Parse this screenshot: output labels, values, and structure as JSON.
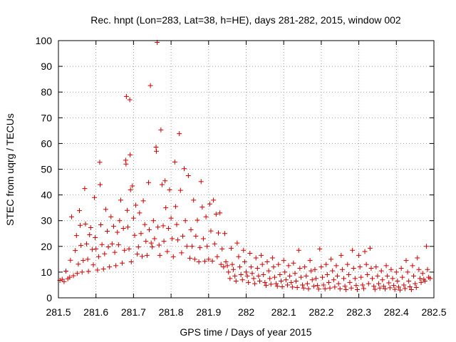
{
  "colors": {
    "points": "#cc0000",
    "frame": "#000000",
    "grid": "#a0a0a0"
  },
  "chart_data": {
    "type": "scatter",
    "title": "Rec. hnpt (Lon=283, Lat=38, h=HE), days 281-282, 2015, window 002",
    "xlabel": "GPS time / Days of year 2015",
    "ylabel": "STEC from uqrg / TECUs",
    "xlim": [
      281.5,
      282.5
    ],
    "ylim": [
      0,
      100
    ],
    "xticks": [
      281.5,
      281.6,
      281.7,
      281.8,
      281.9,
      282,
      282.1,
      282.2,
      282.3,
      282.4,
      282.5
    ],
    "xtick_labels": [
      "281.5",
      "281.6",
      "281.7",
      "281.8",
      "281.9",
      "282",
      "282.1",
      "282.2",
      "282.3",
      "282.4",
      "282.5"
    ],
    "yticks": [
      0,
      10,
      20,
      30,
      40,
      50,
      60,
      70,
      80,
      90,
      100
    ],
    "ytick_labels": [
      "0",
      "10",
      "20",
      "30",
      "40",
      "50",
      "60",
      "70",
      "80",
      "90",
      "100"
    ],
    "grid": true,
    "marker": "+",
    "points": [
      [
        281.504,
        6.8
      ],
      [
        281.51,
        7.2
      ],
      [
        281.515,
        6.3
      ],
      [
        281.52,
        10.4
      ],
      [
        281.525,
        7.4
      ],
      [
        281.53,
        8.0
      ],
      [
        281.532,
        14.6
      ],
      [
        281.535,
        31.5
      ],
      [
        281.54,
        8.6
      ],
      [
        281.545,
        18.4
      ],
      [
        281.548,
        24.2
      ],
      [
        281.55,
        9.5
      ],
      [
        281.553,
        13.1
      ],
      [
        281.556,
        33.9
      ],
      [
        281.558,
        28.2
      ],
      [
        281.56,
        20.4
      ],
      [
        281.563,
        10.0
      ],
      [
        281.566,
        14.5
      ],
      [
        281.57,
        42.5
      ],
      [
        281.572,
        28.7
      ],
      [
        281.575,
        21.0
      ],
      [
        281.578,
        15.0
      ],
      [
        281.58,
        10.3
      ],
      [
        281.583,
        24.5
      ],
      [
        281.586,
        27.3
      ],
      [
        281.59,
        18.8
      ],
      [
        281.593,
        12.8
      ],
      [
        281.596,
        39.0
      ],
      [
        281.598,
        23.4
      ],
      [
        281.6,
        19.0
      ],
      [
        281.604,
        10.8
      ],
      [
        281.607,
        16.0
      ],
      [
        281.61,
        52.7
      ],
      [
        281.611,
        44.0
      ],
      [
        281.613,
        28.4
      ],
      [
        281.616,
        20.7
      ],
      [
        281.62,
        11.2
      ],
      [
        281.623,
        17.1
      ],
      [
        281.626,
        34.4
      ],
      [
        281.63,
        25.9
      ],
      [
        281.633,
        19.8
      ],
      [
        281.636,
        12.0
      ],
      [
        281.64,
        31.5
      ],
      [
        281.643,
        21.0
      ],
      [
        281.647,
        27.8
      ],
      [
        281.65,
        17.7
      ],
      [
        281.653,
        12.5
      ],
      [
        281.657,
        25.5
      ],
      [
        281.66,
        20.6
      ],
      [
        281.663,
        30.0
      ],
      [
        281.666,
        38.0
      ],
      [
        281.67,
        13.5
      ],
      [
        281.673,
        27.0
      ],
      [
        281.676,
        18.5
      ],
      [
        281.679,
        53.5
      ],
      [
        281.68,
        52.0
      ],
      [
        281.681,
        78.3
      ],
      [
        281.683,
        34.0
      ],
      [
        281.685,
        27.5
      ],
      [
        281.688,
        19.0
      ],
      [
        281.69,
        77.0
      ],
      [
        281.691,
        55.6
      ],
      [
        281.692,
        42.0
      ],
      [
        281.694,
        14.0
      ],
      [
        281.697,
        43.5
      ],
      [
        281.7,
        31.0
      ],
      [
        281.703,
        24.3
      ],
      [
        281.706,
        36.0
      ],
      [
        281.71,
        17.0
      ],
      [
        281.713,
        19.8
      ],
      [
        281.716,
        33.0
      ],
      [
        281.72,
        25.0
      ],
      [
        281.723,
        16.1
      ],
      [
        281.726,
        37.7
      ],
      [
        281.73,
        28.5
      ],
      [
        281.733,
        22.0
      ],
      [
        281.736,
        16.5
      ],
      [
        281.74,
        44.8
      ],
      [
        281.742,
        26.5
      ],
      [
        281.745,
        82.5
      ],
      [
        281.747,
        21.3
      ],
      [
        281.75,
        19.8
      ],
      [
        281.753,
        30.0
      ],
      [
        281.756,
        23.0
      ],
      [
        281.76,
        58.6
      ],
      [
        281.761,
        57.0
      ],
      [
        281.763,
        99.3
      ],
      [
        281.765,
        27.5
      ],
      [
        281.768,
        20.5
      ],
      [
        281.77,
        16.5
      ],
      [
        281.773,
        65.3
      ],
      [
        281.776,
        44.0
      ],
      [
        281.779,
        28.0
      ],
      [
        281.781,
        22.0
      ],
      [
        281.784,
        45.5
      ],
      [
        281.786,
        35.0
      ],
      [
        281.79,
        18.0
      ],
      [
        281.793,
        27.0
      ],
      [
        281.796,
        42.0
      ],
      [
        281.8,
        31.0
      ],
      [
        281.803,
        23.0
      ],
      [
        281.806,
        16.0
      ],
      [
        281.81,
        52.8
      ],
      [
        281.812,
        35.5
      ],
      [
        281.815,
        28.5
      ],
      [
        281.818,
        22.5
      ],
      [
        281.822,
        63.8
      ],
      [
        281.825,
        41.8
      ],
      [
        281.828,
        17.5
      ],
      [
        281.831,
        24.0
      ],
      [
        281.835,
        50.2
      ],
      [
        281.838,
        30.0
      ],
      [
        281.842,
        20.0
      ],
      [
        281.846,
        47.5
      ],
      [
        281.85,
        15.4
      ],
      [
        281.853,
        26.5
      ],
      [
        281.856,
        20.0
      ],
      [
        281.86,
        38.0
      ],
      [
        281.863,
        15.0
      ],
      [
        281.866,
        24.0
      ],
      [
        281.87,
        30.2
      ],
      [
        281.874,
        14.0
      ],
      [
        281.877,
        19.5
      ],
      [
        281.88,
        45.2
      ],
      [
        281.883,
        35.3
      ],
      [
        281.886,
        23.0
      ],
      [
        281.89,
        14.2
      ],
      [
        281.893,
        31.5
      ],
      [
        281.896,
        20.0
      ],
      [
        281.9,
        15.0
      ],
      [
        281.903,
        36.5
      ],
      [
        281.906,
        26.0
      ],
      [
        281.91,
        14.3
      ],
      [
        281.913,
        38.0
      ],
      [
        281.916,
        21.0
      ],
      [
        281.92,
        32.5
      ],
      [
        281.923,
        16.0
      ],
      [
        281.926,
        25.2
      ],
      [
        281.93,
        33.0
      ],
      [
        281.933,
        13.0
      ],
      [
        281.936,
        19.0
      ],
      [
        281.94,
        12.0
      ],
      [
        281.943,
        25.0
      ],
      [
        281.946,
        14.0
      ],
      [
        281.95,
        12.5
      ],
      [
        281.953,
        10.0
      ],
      [
        281.957,
        7.5
      ],
      [
        281.96,
        19.3
      ],
      [
        281.963,
        13.0
      ],
      [
        281.966,
        11.0
      ],
      [
        281.97,
        8.5
      ],
      [
        281.973,
        6.5
      ],
      [
        281.976,
        21.3
      ],
      [
        281.98,
        16.0
      ],
      [
        281.983,
        12.0
      ],
      [
        281.986,
        9.0
      ],
      [
        281.99,
        7.0
      ],
      [
        281.993,
        18.5
      ],
      [
        281.996,
        14.0
      ],
      [
        282.0,
        10.0
      ],
      [
        282.003,
        8.5
      ],
      [
        282.006,
        6.0
      ],
      [
        282.01,
        17.3
      ],
      [
        282.013,
        12.0
      ],
      [
        282.016,
        9.5
      ],
      [
        282.02,
        7.5
      ],
      [
        282.023,
        5.5
      ],
      [
        282.026,
        15.5
      ],
      [
        282.03,
        11.5
      ],
      [
        282.033,
        8.5
      ],
      [
        282.036,
        6.5
      ],
      [
        282.04,
        16.5
      ],
      [
        282.043,
        13.0
      ],
      [
        282.046,
        9.0
      ],
      [
        282.05,
        6.0
      ],
      [
        282.053,
        4.8
      ],
      [
        282.056,
        14.0
      ],
      [
        282.06,
        10.5
      ],
      [
        282.063,
        7.5
      ],
      [
        282.066,
        5.3
      ],
      [
        282.07,
        15.5
      ],
      [
        282.073,
        12.0
      ],
      [
        282.076,
        8.0
      ],
      [
        282.08,
        5.5
      ],
      [
        282.083,
        4.5
      ],
      [
        282.086,
        13.0
      ],
      [
        282.09,
        9.0
      ],
      [
        282.093,
        6.5
      ],
      [
        282.096,
        4.3
      ],
      [
        282.1,
        14.5
      ],
      [
        282.103,
        10.0
      ],
      [
        282.106,
        7.0
      ],
      [
        282.11,
        5.0
      ],
      [
        282.113,
        12.5
      ],
      [
        282.116,
        8.5
      ],
      [
        282.12,
        6.0
      ],
      [
        282.123,
        4.2
      ],
      [
        282.126,
        13.5
      ],
      [
        282.13,
        9.5
      ],
      [
        282.133,
        6.5
      ],
      [
        282.136,
        4.0
      ],
      [
        282.14,
        18.5
      ],
      [
        282.143,
        11.5
      ],
      [
        282.146,
        8.0
      ],
      [
        282.15,
        5.0
      ],
      [
        282.153,
        3.8
      ],
      [
        282.156,
        12.0
      ],
      [
        282.16,
        8.5
      ],
      [
        282.163,
        5.5
      ],
      [
        282.166,
        3.5
      ],
      [
        282.17,
        14.5
      ],
      [
        282.173,
        10.5
      ],
      [
        282.176,
        7.0
      ],
      [
        282.18,
        4.5
      ],
      [
        282.183,
        11.0
      ],
      [
        282.186,
        7.5
      ],
      [
        282.19,
        4.8
      ],
      [
        282.193,
        3.4
      ],
      [
        282.196,
        19.0
      ],
      [
        282.2,
        12.0
      ],
      [
        282.203,
        8.0
      ],
      [
        282.206,
        5.0
      ],
      [
        282.21,
        3.5
      ],
      [
        282.213,
        13.0
      ],
      [
        282.216,
        9.0
      ],
      [
        282.22,
        6.0
      ],
      [
        282.223,
        3.8
      ],
      [
        282.226,
        15.0
      ],
      [
        282.23,
        10.5
      ],
      [
        282.233,
        7.0
      ],
      [
        282.236,
        4.2
      ],
      [
        282.24,
        12.5
      ],
      [
        282.243,
        8.5
      ],
      [
        282.246,
        5.5
      ],
      [
        282.25,
        3.5
      ],
      [
        282.253,
        16.5
      ],
      [
        282.256,
        11.0
      ],
      [
        282.26,
        7.5
      ],
      [
        282.263,
        4.5
      ],
      [
        282.266,
        3.2
      ],
      [
        282.27,
        13.0
      ],
      [
        282.273,
        9.0
      ],
      [
        282.276,
        6.0
      ],
      [
        282.28,
        3.8
      ],
      [
        282.283,
        18.5
      ],
      [
        282.286,
        11.5
      ],
      [
        282.29,
        7.5
      ],
      [
        282.293,
        4.8
      ],
      [
        282.296,
        3.2
      ],
      [
        282.3,
        16.5
      ],
      [
        282.303,
        12.0
      ],
      [
        282.306,
        8.0
      ],
      [
        282.31,
        5.0
      ],
      [
        282.313,
        3.6
      ],
      [
        282.316,
        18.0
      ],
      [
        282.32,
        13.0
      ],
      [
        282.323,
        9.0
      ],
      [
        282.326,
        5.5
      ],
      [
        282.33,
        19.3
      ],
      [
        282.333,
        11.5
      ],
      [
        282.336,
        7.5
      ],
      [
        282.34,
        4.5
      ],
      [
        282.343,
        3.3
      ],
      [
        282.346,
        12.0
      ],
      [
        282.35,
        8.5
      ],
      [
        282.353,
        5.5
      ],
      [
        282.356,
        3.8
      ],
      [
        282.36,
        10.5
      ],
      [
        282.363,
        7.0
      ],
      [
        282.366,
        4.5
      ],
      [
        282.37,
        3.5
      ],
      [
        282.373,
        12.5
      ],
      [
        282.376,
        8.5
      ],
      [
        282.38,
        5.8
      ],
      [
        282.383,
        3.9
      ],
      [
        282.386,
        11.0
      ],
      [
        282.39,
        7.5
      ],
      [
        282.393,
        4.8
      ],
      [
        282.396,
        3.3
      ],
      [
        282.4,
        10.0
      ],
      [
        282.403,
        6.5
      ],
      [
        282.406,
        4.2
      ],
      [
        282.41,
        3.0
      ],
      [
        282.413,
        11.5
      ],
      [
        282.416,
        8.0
      ],
      [
        282.42,
        5.0
      ],
      [
        282.423,
        3.6
      ],
      [
        282.426,
        14.5
      ],
      [
        282.43,
        10.0
      ],
      [
        282.433,
        6.5
      ],
      [
        282.436,
        4.3
      ],
      [
        282.44,
        3.2
      ],
      [
        282.443,
        12.5
      ],
      [
        282.446,
        8.5
      ],
      [
        282.45,
        5.5
      ],
      [
        282.453,
        4.0
      ],
      [
        282.456,
        15.5
      ],
      [
        282.46,
        11.0
      ],
      [
        282.463,
        7.5
      ],
      [
        282.466,
        6.0
      ],
      [
        282.47,
        9.5
      ],
      [
        282.473,
        7.2
      ],
      [
        282.476,
        6.5
      ],
      [
        282.48,
        20.0
      ],
      [
        282.483,
        11.0
      ],
      [
        282.486,
        8.0
      ],
      [
        282.49,
        7.5
      ]
    ]
  }
}
